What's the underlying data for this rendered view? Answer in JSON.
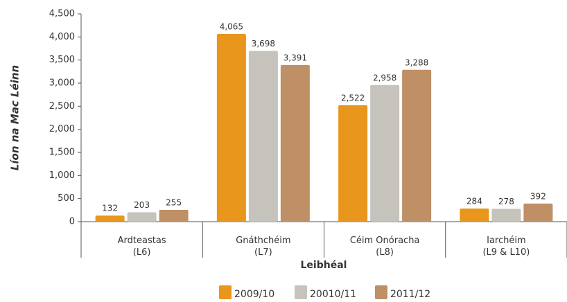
{
  "chart_data": {
    "type": "bar",
    "categories": [
      "Ardteastas\n(L6)",
      "Gnáthchéim\n(L7)",
      "Céim Onóracha\n(L8)",
      "Iarchéim\n(L9 & L10)"
    ],
    "series": [
      {
        "name": "2009/10",
        "color": "#e8961c",
        "values": [
          132,
          4065,
          2522,
          284
        ],
        "value_labels": [
          "132",
          "4,065",
          "2,522",
          "284"
        ]
      },
      {
        "name": "20010/11",
        "color": "#c6c3bd",
        "values": [
          203,
          3698,
          2958,
          278
        ],
        "value_labels": [
          "203",
          "3,698",
          "2,958",
          "278"
        ]
      },
      {
        "name": "2011/12",
        "color": "#bf8f66",
        "values": [
          255,
          3391,
          3288,
          392
        ],
        "value_labels": [
          "255",
          "3,391",
          "3,288",
          "392"
        ]
      }
    ],
    "x_label": "Leibhéal",
    "y_label": "Líon na Mac Léinn",
    "ylim": [
      0,
      4500
    ],
    "yticks": [
      0,
      500,
      {
        "value": 1000,
        "label": "1,000"
      },
      {
        "value": 1500,
        "label": "1,500"
      },
      {
        "value": 2000,
        "label": "2,000"
      },
      {
        "value": 2500,
        "label": "2,500"
      },
      {
        "value": 3000,
        "label": "3,000"
      },
      {
        "value": 3500,
        "label": "3,500"
      },
      {
        "value": 4000,
        "label": "4,000"
      },
      {
        "value": 4500,
        "label": "4,500"
      }
    ],
    "grid": false
  }
}
